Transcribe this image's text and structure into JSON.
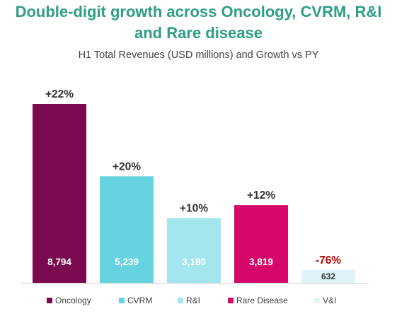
{
  "chart_data": {
    "type": "bar",
    "title": "Double-digit growth across Oncology, CVRM, R&I and Rare disease",
    "subtitle": "H1 Total Revenues (USD millions) and Growth vs PY",
    "categories": [
      "Oncology",
      "CVRM",
      "R&I",
      "Rare Disease",
      "V&I"
    ],
    "values": [
      8794,
      5239,
      3180,
      3819,
      632
    ],
    "value_labels": [
      "8,794",
      "5,239",
      "3,180",
      "3,819",
      "632"
    ],
    "growth_labels": [
      "+22%",
      "+20%",
      "+10%",
      "+12%",
      "-76%"
    ],
    "colors": [
      "#7a0a4f",
      "#66d4e0",
      "#a3e6ee",
      "#d6086a",
      "#dff4f8"
    ],
    "value_label_colors": [
      "#ffffff",
      "#ffffff",
      "#ffffff",
      "#ffffff",
      "#333333"
    ],
    "growth_label_colors": [
      "#333333",
      "#333333",
      "#333333",
      "#333333",
      "#c00000"
    ],
    "ylim": [
      0,
      8794
    ],
    "xlabel": "",
    "ylabel": "",
    "grid": false,
    "legend_position": "bottom"
  }
}
